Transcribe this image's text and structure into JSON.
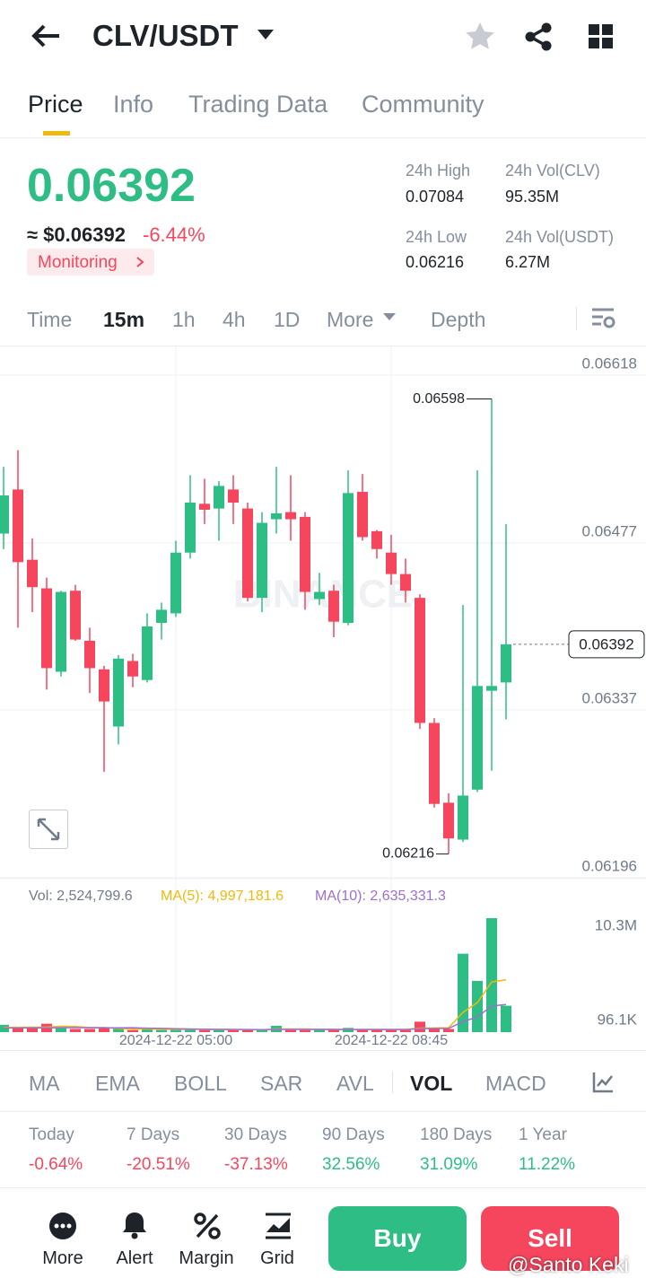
{
  "header": {
    "pair": "CLV/USDT"
  },
  "tabs": [
    "Price",
    "Info",
    "Trading Data",
    "Community"
  ],
  "price": {
    "last": "0.06392",
    "fiat": "≈ $0.06392",
    "change": "-6.44%",
    "tag": "Monitoring"
  },
  "stats": [
    {
      "label": "24h High",
      "value": "0.07084"
    },
    {
      "label": "24h Vol(CLV)",
      "value": "95.35M"
    },
    {
      "label": "24h Low",
      "value": "0.06216"
    },
    {
      "label": "24h Vol(USDT)",
      "value": "6.27M"
    }
  ],
  "intervals": [
    "Time",
    "15m",
    "1h",
    "4h",
    "1D",
    "More",
    "Depth"
  ],
  "chart_data": {
    "type": "candlestick",
    "watermark": "BINANCE",
    "categories": [
      null,
      null,
      null,
      null,
      null,
      null,
      null,
      null,
      null,
      null,
      null,
      null,
      "2024-12-22 05:00",
      null,
      null,
      null,
      null,
      null,
      null,
      null,
      null,
      null,
      null,
      null,
      null,
      null,
      null,
      "2024-12-22 08:45",
      null,
      null,
      null,
      null,
      null,
      null,
      null,
      null
    ],
    "open": [
      0.06485,
      0.06522,
      0.06463,
      0.06439,
      0.06369,
      0.06437,
      0.06395,
      0.06371,
      0.06323,
      0.06378,
      0.06362,
      0.0641,
      0.06418,
      0.06469,
      0.0651,
      0.06506,
      0.06522,
      0.06506,
      0.06431,
      0.06497,
      0.06503,
      0.06499,
      0.0643,
      0.06437,
      0.0641,
      0.0652,
      0.06487,
      0.06469,
      0.06451,
      0.06431,
      0.06326,
      0.06259,
      0.06228,
      0.0627,
      0.06353,
      0.0636
    ],
    "high": [
      0.06541,
      0.06555,
      0.06481,
      0.06448,
      0.06437,
      0.06442,
      0.06406,
      0.06374,
      0.06383,
      0.06384,
      0.06418,
      0.06427,
      0.06479,
      0.06534,
      0.06531,
      0.06529,
      0.06534,
      0.06511,
      0.06503,
      0.06541,
      0.06534,
      0.06503,
      0.06452,
      0.06442,
      0.06538,
      0.06535,
      0.06488,
      0.06484,
      0.06464,
      0.06434,
      0.0633,
      0.06267,
      0.06425,
      0.06538,
      0.06598,
      0.06493
    ],
    "low": [
      0.06472,
      0.06406,
      0.06419,
      0.06354,
      0.06365,
      0.06395,
      0.06351,
      0.06285,
      0.06308,
      0.06356,
      0.0636,
      0.06396,
      0.06415,
      0.06464,
      0.06493,
      0.06479,
      0.06493,
      0.06428,
      0.06419,
      0.06485,
      0.06479,
      0.06421,
      0.06425,
      0.06398,
      0.06408,
      0.06479,
      0.06464,
      0.06442,
      0.06427,
      0.06321,
      0.06255,
      0.06216,
      0.06226,
      0.06268,
      0.06286,
      0.06329
    ],
    "close": [
      0.06517,
      0.06461,
      0.0644,
      0.06372,
      0.06436,
      0.06396,
      0.06372,
      0.06344,
      0.0638,
      0.06365,
      0.06407,
      0.06421,
      0.06469,
      0.06511,
      0.06505,
      0.06525,
      0.06511,
      0.06431,
      0.06494,
      0.06502,
      0.06497,
      0.06436,
      0.06436,
      0.06411,
      0.06519,
      0.06482,
      0.06472,
      0.06451,
      0.06437,
      0.06326,
      0.06258,
      0.06229,
      0.06265,
      0.06357,
      0.06357,
      0.06392
    ],
    "ylim": [
      0.06196,
      0.06618
    ],
    "yticks": [
      0.06196,
      0.06337,
      0.06477,
      0.06618
    ],
    "up_color": "#2ebd85",
    "down_color": "#f6465d",
    "volume": {
      "values": [
        700000,
        500000,
        400000,
        800000,
        400000,
        300000,
        300000,
        400000,
        300000,
        200000,
        300000,
        200000,
        300000,
        300000,
        200000,
        200000,
        200000,
        300000,
        200000,
        600000,
        200000,
        200000,
        200000,
        200000,
        400000,
        300000,
        200000,
        200000,
        200000,
        1000000,
        400000,
        300000,
        7500000,
        4900000,
        10900000,
        2524799.6
      ],
      "ma5": [
        450000,
        460000,
        470000,
        480000,
        560000,
        540000,
        440000,
        440000,
        340000,
        300000,
        300000,
        280000,
        260000,
        280000,
        260000,
        240000,
        240000,
        240000,
        220000,
        300000,
        300000,
        300000,
        280000,
        280000,
        240000,
        260000,
        260000,
        260000,
        260000,
        380000,
        400000,
        420000,
        1880000,
        2820000,
        4800000,
        4997181.6
      ],
      "ma10": [
        400000,
        400000,
        410000,
        410000,
        420000,
        430000,
        420000,
        420000,
        410000,
        420000,
        380000,
        350000,
        320000,
        300000,
        280000,
        270000,
        260000,
        250000,
        240000,
        260000,
        270000,
        260000,
        260000,
        250000,
        250000,
        250000,
        250000,
        250000,
        250000,
        330000,
        340000,
        350000,
        1000000,
        1450000,
        2500000,
        2635331.3
      ],
      "ylim": [
        0,
        11590000
      ],
      "yticks": [
        {
          "value": 96100,
          "label": "96.1K"
        },
        {
          "value": 10300000,
          "label": "10.3M"
        }
      ],
      "legend": {
        "vol": "Vol: 2,524,799.6",
        "ma5": "MA(5): 4,997,181.6",
        "ma10": "MA(10): 2,635,331.3"
      },
      "ma5_color": "#f0b90b",
      "ma10_color": "#9c6fd0"
    }
  },
  "indicators": [
    "MA",
    "EMA",
    "BOLL",
    "SAR",
    "AVL",
    "VOL",
    "MACD"
  ],
  "performance": [
    {
      "label": "Today",
      "value": "-0.64%"
    },
    {
      "label": "7 Days",
      "value": "-20.51%"
    },
    {
      "label": "30 Days",
      "value": "-37.13%"
    },
    {
      "label": "90 Days",
      "value": "32.56%"
    },
    {
      "label": "180 Days",
      "value": "31.09%"
    },
    {
      "label": "1 Year",
      "value": "11.22%"
    }
  ],
  "bottom": {
    "items": [
      "More",
      "Alert",
      "Margin",
      "Grid"
    ],
    "buy": "Buy",
    "sell": "Sell"
  },
  "overlay": "@Santo Keki"
}
